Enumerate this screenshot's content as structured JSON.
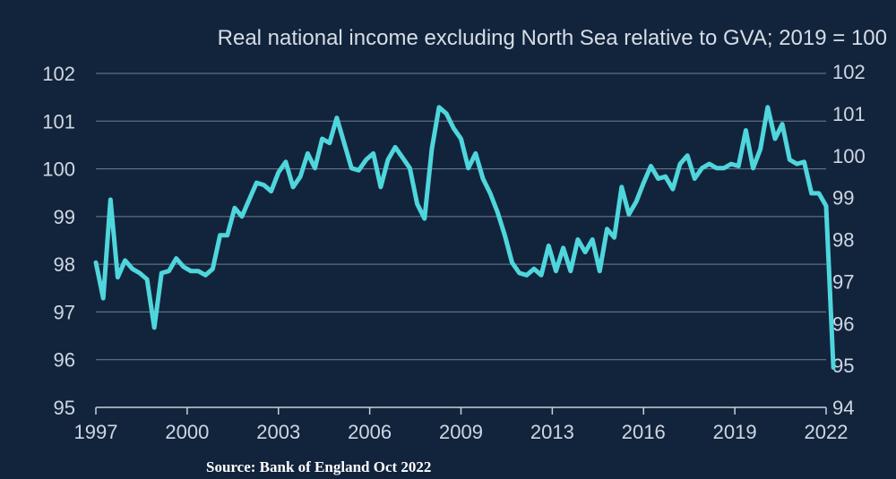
{
  "chart_data": {
    "type": "line",
    "title": "Real national income excluding North Sea relative to GVA; 2019 = 100",
    "source": "Source: Bank of England Oct 2022",
    "x_tick_labels": [
      "1997",
      "2000",
      "2003",
      "2006",
      "2009",
      "2013",
      "2016",
      "2019",
      "2022"
    ],
    "left_axis": {
      "ticks": [
        "102",
        "101",
        "100",
        "99",
        "98",
        "97",
        "96",
        "95"
      ],
      "ylim": [
        95,
        102
      ]
    },
    "right_axis": {
      "ticks": [
        "102",
        "101",
        "100",
        "99",
        "98",
        "97",
        "96",
        "95",
        "94"
      ],
      "ylim": [
        94,
        102
      ]
    },
    "grid": "horizontal",
    "line_color": "#4fd6dc",
    "series": [
      {
        "axis": "right",
        "points": [
          [
            1997.0,
            97.45
          ],
          [
            1997.25,
            96.6
          ],
          [
            1997.5,
            98.95
          ],
          [
            1997.75,
            97.1
          ],
          [
            1998.0,
            97.5
          ],
          [
            1998.25,
            97.3
          ],
          [
            1998.5,
            97.2
          ],
          [
            1998.75,
            97.05
          ],
          [
            1999.0,
            95.9
          ],
          [
            1999.25,
            97.2
          ],
          [
            1999.5,
            97.25
          ],
          [
            1999.75,
            97.55
          ],
          [
            2000.0,
            97.35
          ],
          [
            2000.25,
            97.25
          ],
          [
            2000.5,
            97.25
          ],
          [
            2000.75,
            97.15
          ],
          [
            2001.0,
            97.3
          ],
          [
            2001.25,
            98.1
          ],
          [
            2001.5,
            98.1
          ],
          [
            2001.75,
            98.75
          ],
          [
            2002.0,
            98.55
          ],
          [
            2002.25,
            98.95
          ],
          [
            2002.5,
            99.35
          ],
          [
            2002.75,
            99.3
          ],
          [
            2003.0,
            99.15
          ],
          [
            2003.25,
            99.6
          ],
          [
            2003.5,
            99.85
          ],
          [
            2003.75,
            99.25
          ],
          [
            2004.0,
            99.5
          ],
          [
            2004.25,
            100.05
          ],
          [
            2004.5,
            99.7
          ],
          [
            2004.75,
            100.4
          ],
          [
            2005.0,
            100.3
          ],
          [
            2005.25,
            100.9
          ],
          [
            2005.5,
            100.3
          ],
          [
            2005.75,
            99.7
          ],
          [
            2006.0,
            99.65
          ],
          [
            2006.25,
            99.9
          ],
          [
            2006.5,
            100.05
          ],
          [
            2006.75,
            99.25
          ],
          [
            2007.0,
            99.9
          ],
          [
            2007.25,
            100.2
          ],
          [
            2007.5,
            99.95
          ],
          [
            2007.75,
            99.7
          ],
          [
            2008.0,
            98.85
          ],
          [
            2008.25,
            98.5
          ],
          [
            2008.5,
            100.15
          ],
          [
            2008.75,
            101.15
          ],
          [
            2009.0,
            101.0
          ],
          [
            2009.25,
            100.65
          ],
          [
            2009.5,
            100.4
          ],
          [
            2009.75,
            99.7
          ],
          [
            2010.0,
            100.05
          ],
          [
            2010.25,
            99.45
          ],
          [
            2010.5,
            99.1
          ],
          [
            2010.75,
            98.65
          ],
          [
            2011.0,
            98.1
          ],
          [
            2011.25,
            97.45
          ],
          [
            2011.5,
            97.2
          ],
          [
            2011.75,
            97.15
          ],
          [
            2012.0,
            97.3
          ],
          [
            2012.25,
            97.15
          ],
          [
            2012.5,
            97.85
          ],
          [
            2012.75,
            97.25
          ],
          [
            2013.0,
            97.8
          ],
          [
            2013.25,
            97.25
          ],
          [
            2013.5,
            98.0
          ],
          [
            2013.75,
            97.7
          ],
          [
            2014.0,
            98.0
          ],
          [
            2014.25,
            97.25
          ],
          [
            2014.5,
            98.25
          ],
          [
            2014.75,
            98.05
          ],
          [
            2015.0,
            99.25
          ],
          [
            2015.25,
            98.6
          ],
          [
            2015.5,
            98.9
          ],
          [
            2015.75,
            99.35
          ],
          [
            2016.0,
            99.75
          ],
          [
            2016.25,
            99.45
          ],
          [
            2016.5,
            99.5
          ],
          [
            2016.75,
            99.2
          ],
          [
            2017.0,
            99.8
          ],
          [
            2017.25,
            100.0
          ],
          [
            2017.5,
            99.45
          ],
          [
            2017.75,
            99.7
          ],
          [
            2018.0,
            99.8
          ],
          [
            2018.25,
            99.7
          ],
          [
            2018.5,
            99.7
          ],
          [
            2018.75,
            99.8
          ],
          [
            2019.0,
            99.75
          ],
          [
            2019.25,
            100.6
          ],
          [
            2019.5,
            99.7
          ],
          [
            2019.75,
            100.15
          ],
          [
            2020.0,
            101.15
          ],
          [
            2020.25,
            100.4
          ],
          [
            2020.5,
            100.75
          ],
          [
            2020.75,
            99.9
          ],
          [
            2021.0,
            99.8
          ],
          [
            2021.25,
            99.85
          ],
          [
            2021.5,
            99.1
          ],
          [
            2021.75,
            99.1
          ],
          [
            2022.0,
            98.8
          ],
          [
            2022.25,
            94.95
          ]
        ]
      }
    ]
  }
}
